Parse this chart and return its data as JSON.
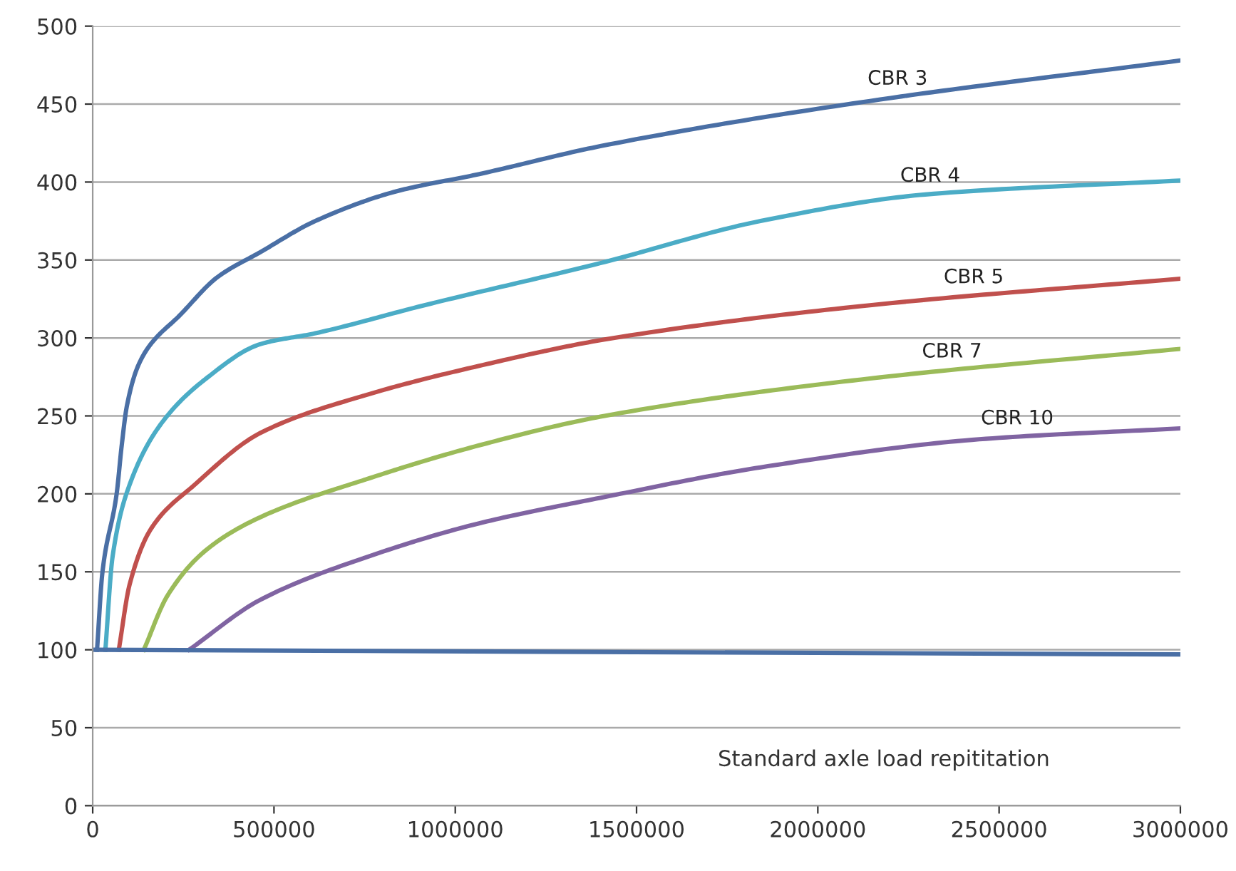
{
  "chart_data": {
    "type": "line",
    "xlabel": "Standard axle load repititation",
    "xlim": [
      0,
      3000000
    ],
    "xticks": [
      0,
      500000,
      1000000,
      1500000,
      2000000,
      2500000,
      3000000
    ],
    "ylim": [
      0,
      500
    ],
    "yticks": [
      0,
      50,
      100,
      150,
      200,
      250,
      300,
      350,
      400,
      450,
      500
    ],
    "grid": "y",
    "marker": "none",
    "line_style": "solid",
    "series": [
      {
        "name": "CBR 3",
        "color": "#4a6fa5",
        "x": [
          12000,
          27000,
          66000,
          80000,
          94000,
          125000,
          160000,
          238000,
          344000,
          462000,
          614000,
          837000,
          1064000,
          1400000,
          2144000,
          3000000
        ],
        "values": [
          100,
          150,
          200,
          231,
          256,
          282,
          296,
          314,
          339,
          355,
          375,
          394,
          405,
          423,
          452,
          478
        ]
      },
      {
        "name": "CBR 4",
        "color": "#4bacc6",
        "x": [
          35000,
          55000,
          102000,
          192000,
          313000,
          462000,
          614000,
          915000,
          1400000,
          1842000,
          2296000,
          3000000
        ],
        "values": [
          100,
          160,
          206,
          246,
          274,
          296,
          303,
          321,
          348,
          375,
          392,
          401
        ]
      },
      {
        "name": "CBR 5",
        "color": "#c0504d",
        "x": [
          72000,
          102000,
          162000,
          282000,
          462000,
          763000,
          1064000,
          1412000,
          2144000,
          3000000
        ],
        "values": [
          100,
          142,
          178,
          206,
          239,
          264,
          282,
          299,
          321,
          338
        ]
      },
      {
        "name": "CBR 7",
        "color": "#9bbb59",
        "x": [
          141000,
          207000,
          313000,
          462000,
          763000,
          1064000,
          1412000,
          2144000,
          3000000
        ],
        "values": [
          100,
          135,
          164,
          185,
          210,
          231,
          250,
          274,
          293
        ]
      },
      {
        "name": "CBR 10",
        "color": "#8064a2",
        "x": [
          266000,
          462000,
          763000,
          1064000,
          1412000,
          1842000,
          2445000,
          3000000
        ],
        "values": [
          100,
          132,
          160,
          181,
          198,
          217,
          235,
          242
        ]
      },
      {
        "color": "#4a6fa5",
        "x": [
          0,
          3000000
        ],
        "values": [
          100,
          97
        ]
      }
    ]
  }
}
